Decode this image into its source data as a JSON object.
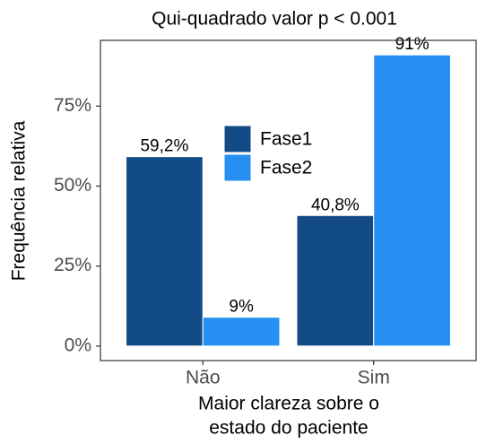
{
  "chart_data": {
    "type": "bar",
    "title": "Qui-quadrado valor p < 0.001",
    "ylabel": "Frequência relativa",
    "xlabel": [
      "Maior clareza sobre o",
      "estado do paciente"
    ],
    "categories": [
      "Não",
      "Sim"
    ],
    "series": [
      {
        "name": "Fase1",
        "color": "#134b86",
        "values": [
          59.2,
          40.8
        ],
        "value_labels": [
          "59,2%",
          "40,8%"
        ]
      },
      {
        "name": "Fase2",
        "color": "#2590f2",
        "values": [
          9,
          91
        ],
        "value_labels": [
          "9%",
          "91%"
        ]
      }
    ],
    "ylim": [
      -4.55,
      95.55
    ],
    "yticks": [
      {
        "value": 0,
        "label": "0%"
      },
      {
        "value": 25,
        "label": "25%"
      },
      {
        "value": 50,
        "label": "50%"
      },
      {
        "value": 75,
        "label": "75%"
      }
    ],
    "grid": false,
    "legend_position": "center"
  }
}
